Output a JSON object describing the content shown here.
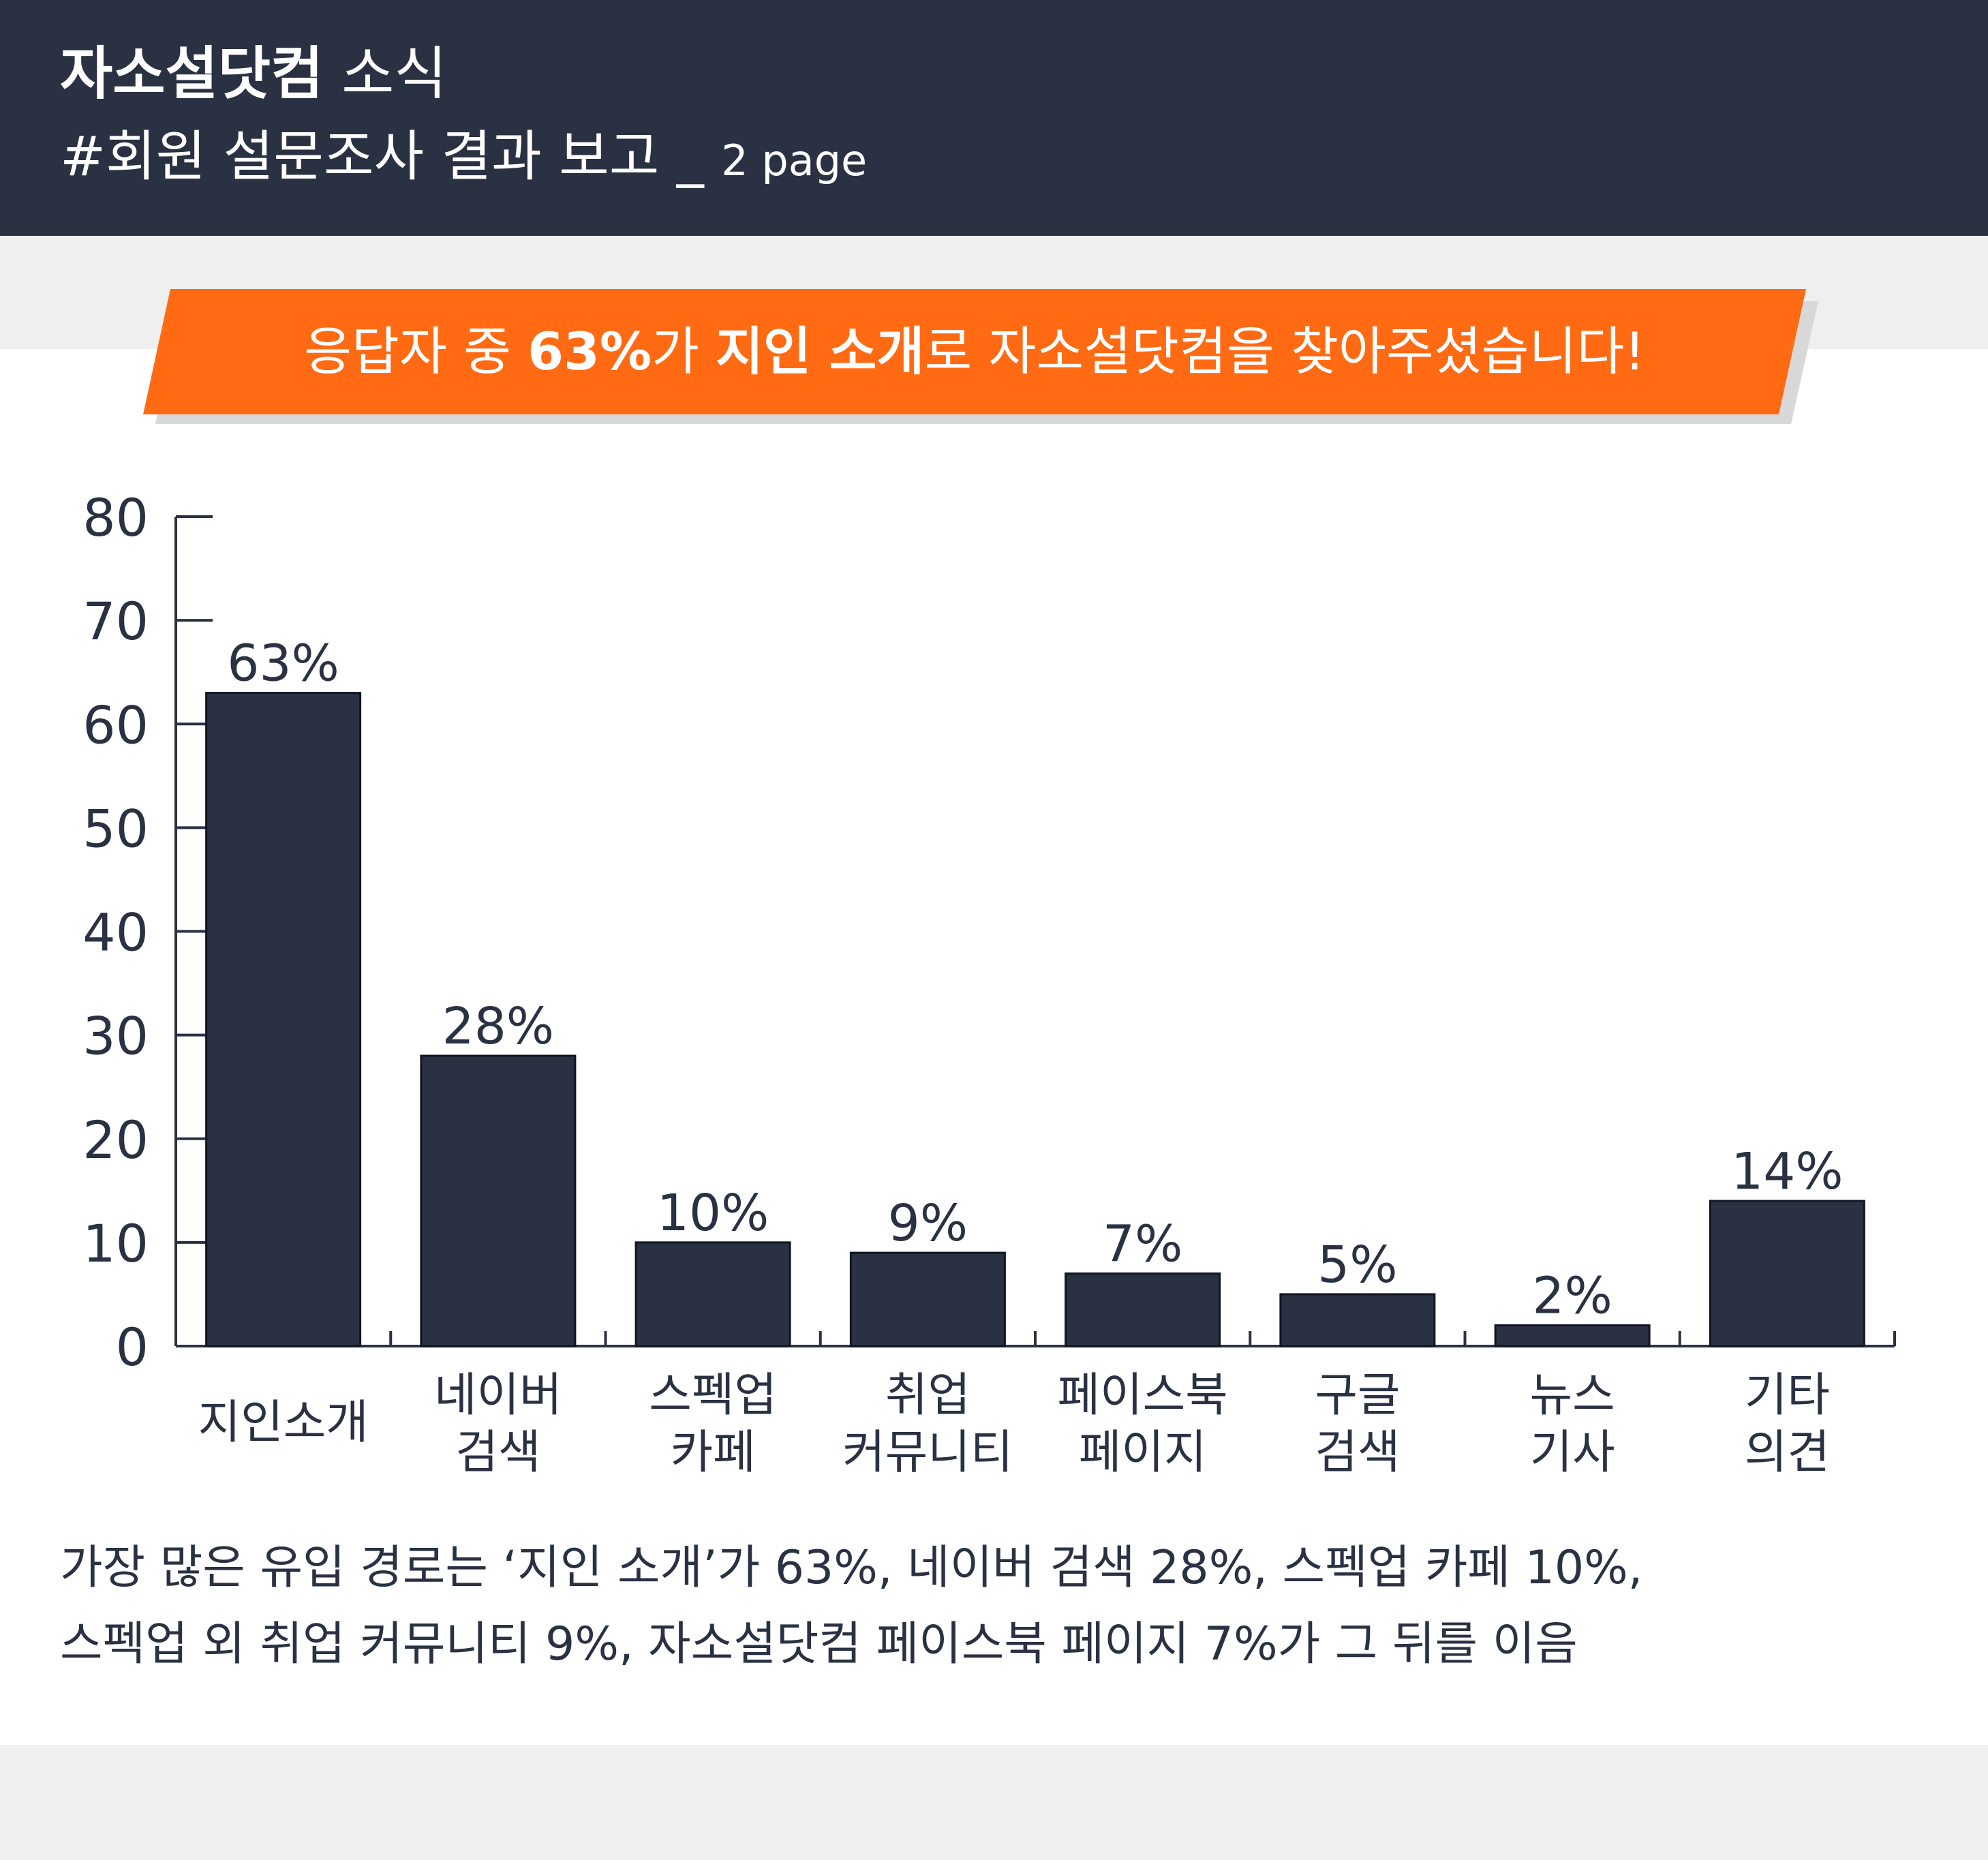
{
  "header": {
    "brand": "자소설닷컴",
    "news": "소식",
    "subtitle": "#회원 설문조사 결과 보고 _",
    "page": "2 page"
  },
  "banner": {
    "part1": "응답자 중 ",
    "bold1": "63%",
    "part2": "가 ",
    "bold2": "지인 소개",
    "part3": "로 자소설닷컴을 찾아주셨습니다!"
  },
  "colors": {
    "header_bg": "#2a3143",
    "accent": "#ff6a13",
    "bar": "#2a3143",
    "page_bg": "#efefef",
    "card_bg": "#ffffff"
  },
  "chart_data": {
    "type": "bar",
    "categories": [
      [
        "지인소개"
      ],
      [
        "네이버",
        "검색"
      ],
      [
        "스펙업",
        "카페"
      ],
      [
        "취업",
        "커뮤니티"
      ],
      [
        "페이스북",
        "페이지"
      ],
      [
        "구글",
        "검색"
      ],
      [
        "뉴스",
        "기사"
      ],
      [
        "기타",
        "의견"
      ]
    ],
    "values": [
      63,
      28,
      10,
      9,
      7,
      5,
      2,
      14
    ],
    "value_labels": [
      "63%",
      "28%",
      "10%",
      "9%",
      "7%",
      "5%",
      "2%",
      "14%"
    ],
    "yticks": [
      "0",
      "10",
      "20",
      "30",
      "40",
      "50",
      "60",
      "70",
      "80"
    ],
    "ylim": [
      0,
      80
    ],
    "grid": false
  },
  "caption": {
    "line1": "가장 많은 유입 경로는 ‘지인 소개’가 63%, 네이버 검색 28%, 스펙업 카페 10%,",
    "line2": "스펙업 외 취업 커뮤니티 9%, 자소설닷컴 페이스북 페이지 7%가 그 뒤를 이음"
  }
}
